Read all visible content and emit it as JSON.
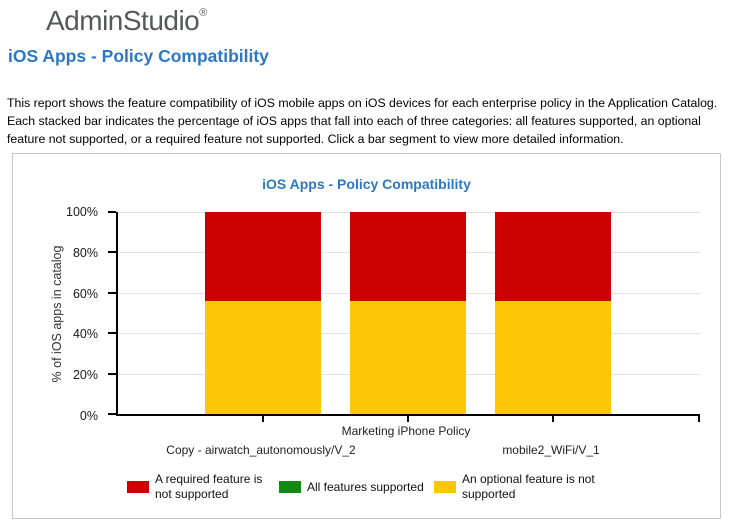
{
  "logo": {
    "text": "AdminStudio",
    "registered_mark": "®"
  },
  "page": {
    "title": "iOS Apps - Policy Compatibility",
    "description": "This report shows the feature compatibility of iOS mobile apps on iOS devices for each enterprise policy in the Application Catalog. Each stacked bar indicates the percentage of iOS apps that fall into each of three categories: all features supported, an optional feature not supported, or a required feature not supported. Click a bar segment to view more detailed information."
  },
  "chart_data": {
    "type": "bar",
    "stacked": true,
    "title": "iOS Apps - Policy Compatibility",
    "ylabel": "% of iOS apps in catalog",
    "xlabel": "",
    "ylim": [
      0,
      100
    ],
    "grid": "horizontal",
    "yticks": [
      {
        "label": "0%",
        "value": 0
      },
      {
        "label": "20%",
        "value": 20
      },
      {
        "label": "40%",
        "value": 40
      },
      {
        "label": "60%",
        "value": 60
      },
      {
        "label": "80%",
        "value": 80
      },
      {
        "label": "100%",
        "value": 100
      }
    ],
    "categories": [
      "Copy - airwatch_autonomously/V_2",
      "Marketing iPhone Policy",
      "mobile2_WiFi/V_1"
    ],
    "series": [
      {
        "name": "An optional feature is not supported",
        "color": "#FFC607",
        "values": [
          56,
          56,
          56
        ]
      },
      {
        "name": "A required feature is not supported",
        "color": "#CC0000",
        "values": [
          44,
          44,
          44
        ]
      },
      {
        "name": "All features supported",
        "color": "#128A12",
        "values": [
          0,
          0,
          0
        ]
      }
    ],
    "legend": {
      "position": "bottom",
      "items": [
        {
          "label": "A required feature is not supported",
          "color": "#CC0000"
        },
        {
          "label": "All features supported",
          "color": "#128A12"
        },
        {
          "label": "An optional feature is not supported",
          "color": "#FFC607"
        }
      ]
    }
  }
}
